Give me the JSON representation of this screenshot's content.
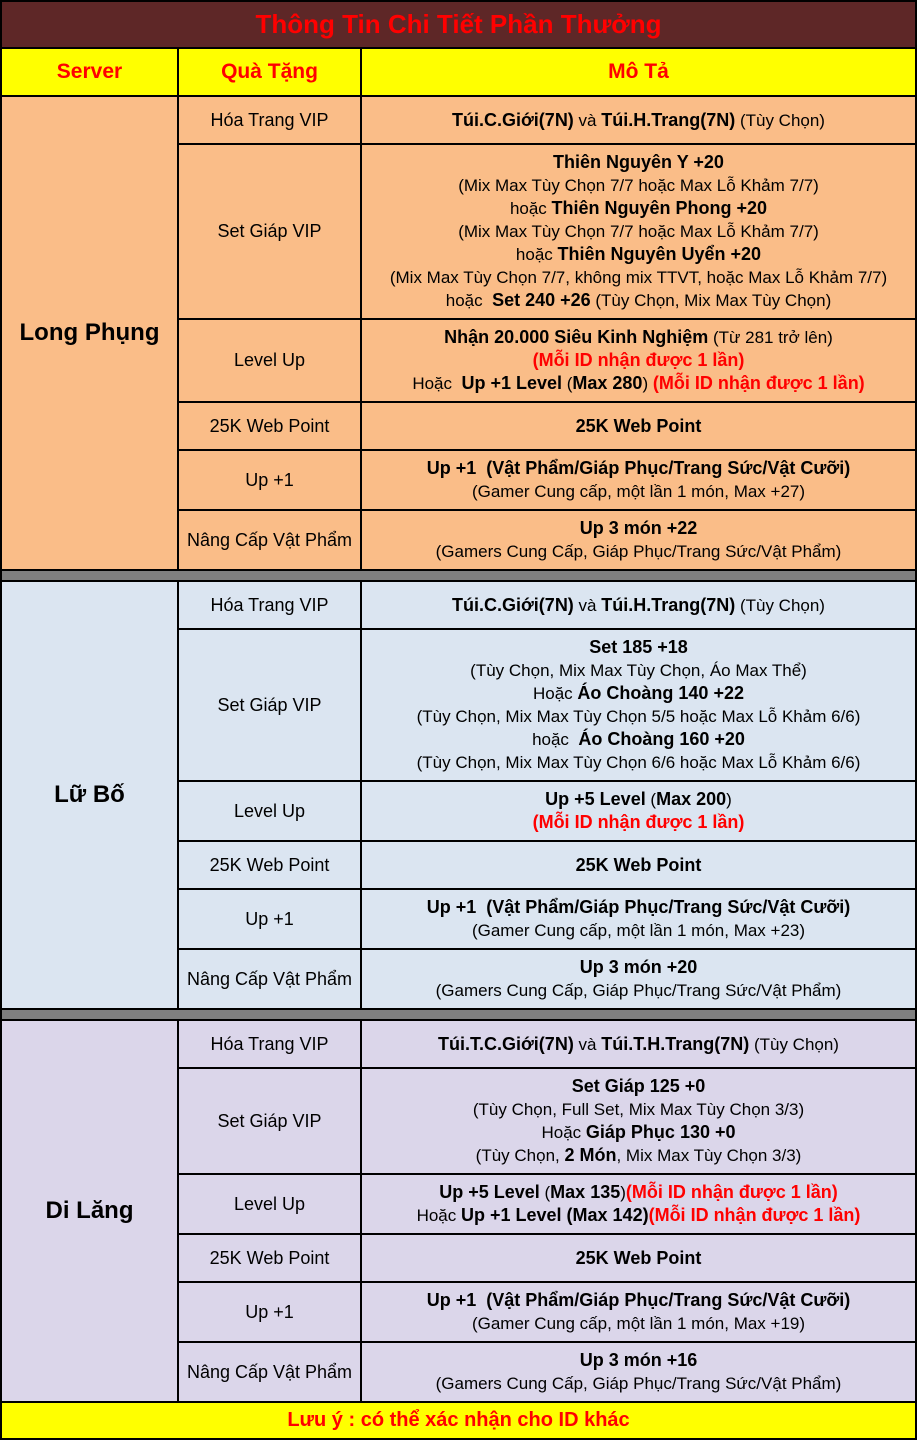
{
  "title": "Thông Tin Chi Tiết Phần Thưởng",
  "columns": [
    "Server",
    "Quà Tặng",
    "Mô Tả"
  ],
  "footer_note": "Lưu ý : có thể xác nhận cho ID khác",
  "colors": {
    "title_bg": "#5E2727",
    "title_text": "#FF0000",
    "header_bg": "#FFFF00",
    "header_text": "#FF0000",
    "separator": "#7F7F7F",
    "highlight_red": "#FF0000",
    "border": "#000000",
    "section_long_phung": "#FABD88",
    "section_lu_bo": "#DBE5F1",
    "section_di_lang": "#DBD6EA"
  },
  "sections": [
    {
      "server": "Long Phụng",
      "bg": "#FABD88",
      "rows": [
        {
          "gift": "Hóa Trang VIP",
          "lines": [
            [
              {
                "t": "Túi.C.Giới(7N)",
                "b": true
              },
              {
                "t": " và "
              },
              {
                "t": "Túi.H.Trang(7N)",
                "b": true
              },
              {
                "t": " (Tùy Chọn)"
              }
            ]
          ]
        },
        {
          "gift": "Set Giáp VIP",
          "lines": [
            [
              {
                "t": "Thiên Nguyên Y +20",
                "b": true
              }
            ],
            [
              {
                "t": "(Mix Max Tùy Chọn 7/7 hoặc Max Lỗ Khảm 7/7)"
              }
            ],
            [
              {
                "t": "hoặc "
              },
              {
                "t": "Thiên Nguyên Phong +20",
                "b": true
              }
            ],
            [
              {
                "t": "(Mix Max Tùy Chọn 7/7 hoặc Max Lỗ Khảm 7/7)"
              }
            ],
            [
              {
                "t": "hoặc "
              },
              {
                "t": "Thiên Nguyên Uyển +20",
                "b": true
              }
            ],
            [
              {
                "t": "(Mix Max Tùy Chọn 7/7, không mix TTVT, hoặc Max Lỗ Khảm 7/7)"
              }
            ],
            [
              {
                "t": "hoặc  "
              },
              {
                "t": "Set 240 +26",
                "b": true
              },
              {
                "t": " (Tùy Chọn, Mix Max Tùy Chọn)"
              }
            ]
          ]
        },
        {
          "gift": "Level Up",
          "lines": [
            [
              {
                "t": "Nhận 20.000 Siêu Kinh Nghiệm",
                "b": true
              },
              {
                "t": " (Từ 281 trở lên)"
              }
            ],
            [
              {
                "t": "(Mỗi ID nhận được 1 lần)",
                "b": true,
                "r": true
              }
            ],
            [
              {
                "t": "Hoặc  "
              },
              {
                "t": "Up +1 Level",
                "b": true
              },
              {
                "t": " ("
              },
              {
                "t": "Max 280",
                "b": true
              },
              {
                "t": ") "
              },
              {
                "t": "(Mỗi ID nhận được 1 lần)",
                "b": true,
                "r": true
              }
            ]
          ]
        },
        {
          "gift": "25K Web Point",
          "lines": [
            [
              {
                "t": "25K Web Point",
                "b": true
              }
            ]
          ]
        },
        {
          "gift": "Up +1",
          "lines": [
            [
              {
                "t": "Up +1  (Vật Phẩm/Giáp Phục/Trang Sức/Vật Cưỡi)",
                "b": true
              }
            ],
            [
              {
                "t": "(Gamer Cung cấp, một lần 1 món, Max +27)"
              }
            ]
          ]
        },
        {
          "gift": "Nâng Cấp Vật Phẩm",
          "lines": [
            [
              {
                "t": "Up 3 món +22",
                "b": true
              }
            ],
            [
              {
                "t": "(Gamers Cung Cấp, Giáp Phục/Trang Sức/Vật Phẩm)"
              }
            ]
          ]
        }
      ]
    },
    {
      "server": "Lữ Bố",
      "bg": "#DBE5F1",
      "rows": [
        {
          "gift": "Hóa Trang VIP",
          "lines": [
            [
              {
                "t": "Túi.C.Giới(7N)",
                "b": true
              },
              {
                "t": " và "
              },
              {
                "t": "Túi.H.Trang(7N)",
                "b": true
              },
              {
                "t": " (Tùy Chọn)"
              }
            ]
          ]
        },
        {
          "gift": "Set Giáp VIP",
          "lines": [
            [
              {
                "t": "Set 185 +18",
                "b": true
              }
            ],
            [
              {
                "t": "(Tùy Chọn, Mix Max Tùy Chọn, Áo Max Thể)"
              }
            ],
            [
              {
                "t": "Hoặc "
              },
              {
                "t": "Áo Choàng 140 +22",
                "b": true
              }
            ],
            [
              {
                "t": "(Tùy Chọn, Mix Max Tùy Chọn 5/5 hoặc Max Lỗ Khảm 6/6)"
              }
            ],
            [
              {
                "t": "hoặc  "
              },
              {
                "t": "Áo Choàng 160 +20",
                "b": true
              }
            ],
            [
              {
                "t": "(Tùy Chọn, Mix Max Tùy Chọn 6/6 hoặc Max Lỗ Khảm 6/6)"
              }
            ]
          ]
        },
        {
          "gift": "Level Up",
          "lines": [
            [
              {
                "t": "Up +5 Level",
                "b": true
              },
              {
                "t": " ("
              },
              {
                "t": "Max 200",
                "b": true
              },
              {
                "t": ")"
              }
            ],
            [
              {
                "t": "(Mỗi ID nhận được 1 lần)",
                "b": true,
                "r": true
              }
            ]
          ]
        },
        {
          "gift": "25K Web Point",
          "lines": [
            [
              {
                "t": "25K Web Point",
                "b": true
              }
            ]
          ]
        },
        {
          "gift": "Up +1",
          "lines": [
            [
              {
                "t": "Up +1  (Vật Phẩm/Giáp Phục/Trang Sức/Vật Cưỡi)",
                "b": true
              }
            ],
            [
              {
                "t": "(Gamer Cung cấp, một lần 1 món, Max +23)"
              }
            ]
          ]
        },
        {
          "gift": "Nâng Cấp Vật Phẩm",
          "lines": [
            [
              {
                "t": "Up 3 món +20",
                "b": true
              }
            ],
            [
              {
                "t": "(Gamers Cung Cấp, Giáp Phục/Trang Sức/Vật Phẩm)"
              }
            ]
          ]
        }
      ]
    },
    {
      "server": "Di Lăng",
      "bg": "#DBD6EA",
      "rows": [
        {
          "gift": "Hóa Trang VIP",
          "lines": [
            [
              {
                "t": "Túi.T.C.Giới(7N)",
                "b": true
              },
              {
                "t": " và "
              },
              {
                "t": "Túi.T.H.Trang(7N)",
                "b": true
              },
              {
                "t": " (Tùy Chọn)"
              }
            ]
          ]
        },
        {
          "gift": "Set Giáp VIP",
          "lines": [
            [
              {
                "t": "Set Giáp 125 +0",
                "b": true
              }
            ],
            [
              {
                "t": "(Tùy Chọn, Full Set, Mix Max Tùy Chọn 3/3)"
              }
            ],
            [
              {
                "t": "Hoặc "
              },
              {
                "t": "Giáp Phục 130 +0",
                "b": true
              }
            ],
            [
              {
                "t": "(Tùy Chọn, "
              },
              {
                "t": "2 Món",
                "b": true
              },
              {
                "t": ", Mix Max Tùy Chọn 3/3)"
              }
            ]
          ]
        },
        {
          "gift": "Level Up",
          "lines": [
            [
              {
                "t": "Up +5 Level",
                "b": true
              },
              {
                "t": " ("
              },
              {
                "t": "Max 135",
                "b": true
              },
              {
                "t": ")"
              },
              {
                "t": "(Mỗi ID nhận được 1 lần)",
                "b": true,
                "r": true
              }
            ],
            [
              {
                "t": "Hoặc "
              },
              {
                "t": "Up +1 Level (Max 142)",
                "b": true
              },
              {
                "t": "(Mỗi ID nhận được 1 lần)",
                "b": true,
                "r": true
              }
            ]
          ]
        },
        {
          "gift": "25K Web Point",
          "lines": [
            [
              {
                "t": "25K Web Point",
                "b": true
              }
            ]
          ]
        },
        {
          "gift": "Up +1",
          "lines": [
            [
              {
                "t": "Up +1  (Vật Phẩm/Giáp Phục/Trang Sức/Vật Cưỡi)",
                "b": true
              }
            ],
            [
              {
                "t": "(Gamer Cung cấp, một lần 1 món, Max +19)"
              }
            ]
          ]
        },
        {
          "gift": "Nâng Cấp Vật Phẩm",
          "lines": [
            [
              {
                "t": "Up 3 món +16",
                "b": true
              }
            ],
            [
              {
                "t": "(Gamers Cung Cấp, Giáp Phục/Trang Sức/Vật Phẩm)"
              }
            ]
          ]
        }
      ]
    }
  ]
}
